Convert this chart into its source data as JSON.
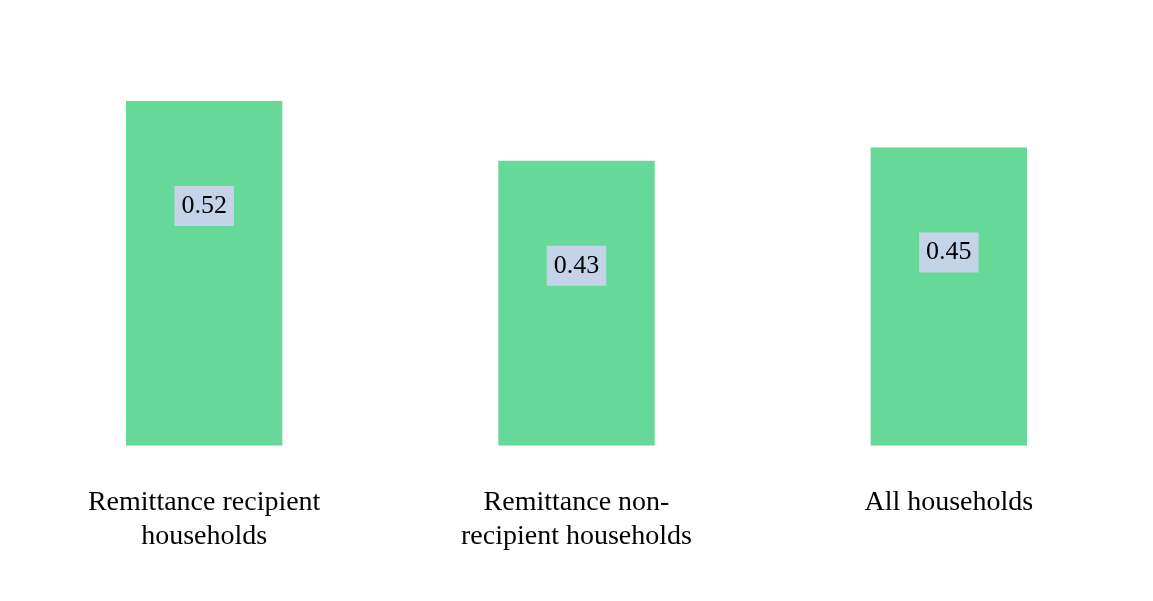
{
  "chart_data": {
    "type": "bar",
    "categories": [
      "Remittance recipient households",
      "Remittance non-recipient households",
      "All households"
    ],
    "values": [
      0.52,
      0.43,
      0.45
    ],
    "color": "#66d999",
    "data_labels": true,
    "grid": false,
    "legend": false
  }
}
